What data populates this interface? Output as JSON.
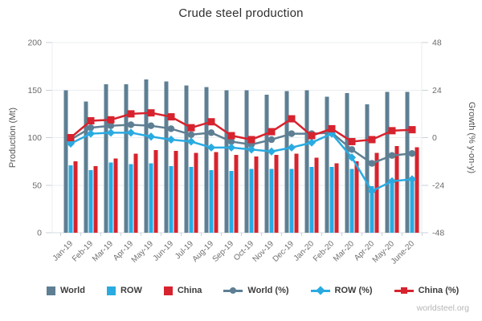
{
  "page": {
    "title": "Crude steel production",
    "watermark": "worldsteel.org"
  },
  "chart_data": {
    "type": "bar",
    "subtype": "grouped-bar-with-lines",
    "title": "Crude steel production",
    "categories": [
      "Jan-19",
      "Feb-19",
      "Mar-19",
      "Apr-19",
      "May-19",
      "Jun-19",
      "Jul-19",
      "Aug-19",
      "Sep-19",
      "Oct-19",
      "Nov-19",
      "Dec-19",
      "Jan-20",
      "Feb-20",
      "Mar-20",
      "Apr-20",
      "May-20",
      "June-20"
    ],
    "bar_series": [
      {
        "name": "World",
        "color": "#5e7f93",
        "axis": "left",
        "values": [
          150,
          138,
          156,
          156,
          161,
          159,
          155,
          153,
          150,
          150,
          145,
          149,
          150,
          143,
          147,
          135,
          148,
          148
        ]
      },
      {
        "name": "ROW",
        "color": "#29abe2",
        "axis": "left",
        "values": [
          71,
          66,
          74,
          72,
          73,
          70,
          69,
          66,
          65,
          67,
          67,
          67,
          69,
          69,
          67,
          49,
          54,
          57
        ]
      },
      {
        "name": "China",
        "color": "#d7232e",
        "axis": "left",
        "values": [
          75,
          70,
          78,
          83,
          87,
          86,
          84,
          85,
          82,
          80,
          82,
          83,
          79,
          73,
          75,
          84,
          91,
          90
        ]
      }
    ],
    "line_series": [
      {
        "name": "World (%)",
        "color": "#5e7f93",
        "marker": "circle",
        "axis": "right",
        "values": [
          -1,
          5,
          6,
          6.5,
          6,
          4.5,
          1.5,
          2.5,
          -2,
          -3.5,
          -1,
          2,
          2,
          2.5,
          -6,
          -13,
          -9,
          -8
        ]
      },
      {
        "name": "ROW (%)",
        "color": "#29abe2",
        "marker": "diamond",
        "axis": "right",
        "values": [
          -3,
          2,
          2.5,
          2.5,
          0.5,
          -1,
          -2,
          -5,
          -5,
          -6,
          -7,
          -5,
          -2.5,
          2,
          -10,
          -27,
          -22,
          -21
        ]
      },
      {
        "name": "China (%)",
        "color": "#d7232e",
        "marker": "square",
        "axis": "right",
        "values": [
          0,
          8.5,
          9,
          12,
          12.5,
          10.5,
          5,
          8,
          1,
          -1,
          3,
          9.5,
          1,
          4.5,
          -2,
          -1,
          3.5,
          4
        ]
      }
    ],
    "left_axis": {
      "label": "Production (Mt)",
      "ticks": [
        0,
        50,
        100,
        150,
        200
      ],
      "range": [
        0,
        200
      ]
    },
    "right_axis": {
      "label": "Growth (% y-on-y)",
      "ticks": [
        -48,
        -24,
        0,
        24,
        48
      ],
      "range": [
        -48,
        48
      ]
    },
    "grid": true,
    "legend_position": "bottom",
    "colors": {
      "grid": "#e9eef2",
      "axis_line": "#d5dde2",
      "tick": "#c9d2d8",
      "tick_label": "#6b6b6b",
      "axis_title": "#555555",
      "x_label": "#6e6e6e"
    }
  }
}
